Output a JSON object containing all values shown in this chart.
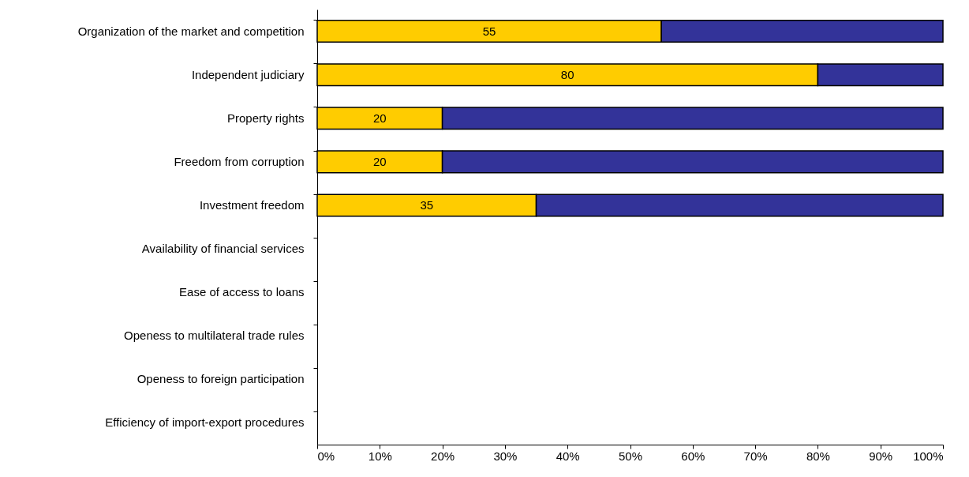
{
  "chart_data": {
    "type": "bar",
    "orientation": "horizontal",
    "stacked": true,
    "categories": [
      "Organization of the market and competition",
      "Independent judiciary",
      "Property rights",
      "Freedom from corruption",
      "Investment freedom",
      "Availability of financial services",
      "Ease of access to loans",
      "Openess to multilateral trade rules",
      "Openess to foreign participation",
      "Efficiency of import-export procedures"
    ],
    "series": [
      {
        "color": "#ffcc00",
        "values": [
          55,
          80,
          20,
          20,
          35,
          null,
          null,
          null,
          null,
          null
        ],
        "value_labels": [
          "55",
          "80",
          "20",
          "20",
          "35",
          null,
          null,
          null,
          null,
          null
        ]
      },
      {
        "color": "#333399",
        "values": [
          45,
          20,
          80,
          80,
          65,
          null,
          null,
          null,
          null,
          null
        ]
      }
    ],
    "xlim": [
      0,
      100
    ],
    "xticks": [
      {
        "value": 0,
        "label": "0%"
      },
      {
        "value": 10,
        "label": "10%"
      },
      {
        "value": 20,
        "label": "20%"
      },
      {
        "value": 30,
        "label": "30%"
      },
      {
        "value": 40,
        "label": "40%"
      },
      {
        "value": 50,
        "label": "50%"
      },
      {
        "value": 60,
        "label": "60%"
      },
      {
        "value": 70,
        "label": "70%"
      },
      {
        "value": 80,
        "label": "80%"
      },
      {
        "value": 90,
        "label": "90%"
      },
      {
        "value": 100,
        "label": "100%"
      }
    ]
  }
}
